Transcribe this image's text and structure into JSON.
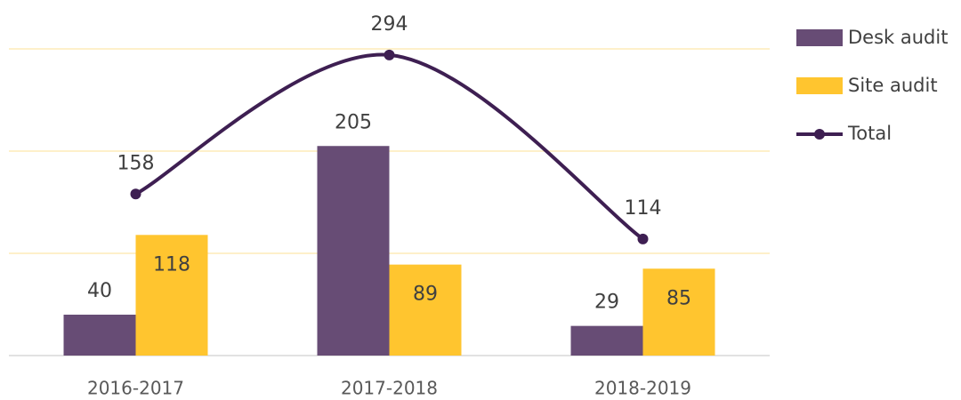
{
  "chart_data": {
    "type": "bar",
    "categories": [
      "2016-2017",
      "2017-2018",
      "2018-2019"
    ],
    "series": [
      {
        "name": "Desk audit",
        "color": "#674c75",
        "values": [
          40,
          205,
          29
        ]
      },
      {
        "name": "Site audit",
        "color": "#ffc52f",
        "values": [
          118,
          89,
          85
        ]
      },
      {
        "name": "Total",
        "type": "line",
        "color": "#3e1f52",
        "values": [
          158,
          294,
          114
        ]
      }
    ],
    "ylim": [
      0,
      300
    ],
    "yticks": [
      0,
      100,
      200,
      300
    ],
    "grid": true,
    "legend": "right"
  }
}
